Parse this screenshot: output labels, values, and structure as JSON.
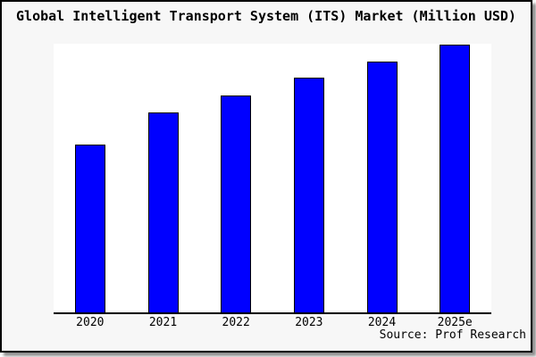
{
  "figure": {
    "background": "#f7f7f7",
    "plot_background": "#ffffff",
    "border_color": "#000000",
    "axis_line_color": "#000000"
  },
  "chart_data": {
    "type": "bar",
    "title": "Global Intelligent Transport System (ITS) Market (Million USD)",
    "categories": [
      "2020",
      "2021",
      "2022",
      "2023",
      "2024",
      "2025e"
    ],
    "values": [
      62.8,
      74.8,
      81.1,
      87.7,
      93.7,
      100
    ],
    "value_scale": "relative units; y-axis is unlabeled in chart, max bar normalized to 100",
    "xlabel": "",
    "ylabel": "",
    "ylim": [
      0,
      100.3
    ],
    "grid": false,
    "legend": null,
    "bar_color": "#0000ff",
    "bar_border_color": "#000000"
  },
  "source": {
    "label": "Source: Prof Research"
  }
}
